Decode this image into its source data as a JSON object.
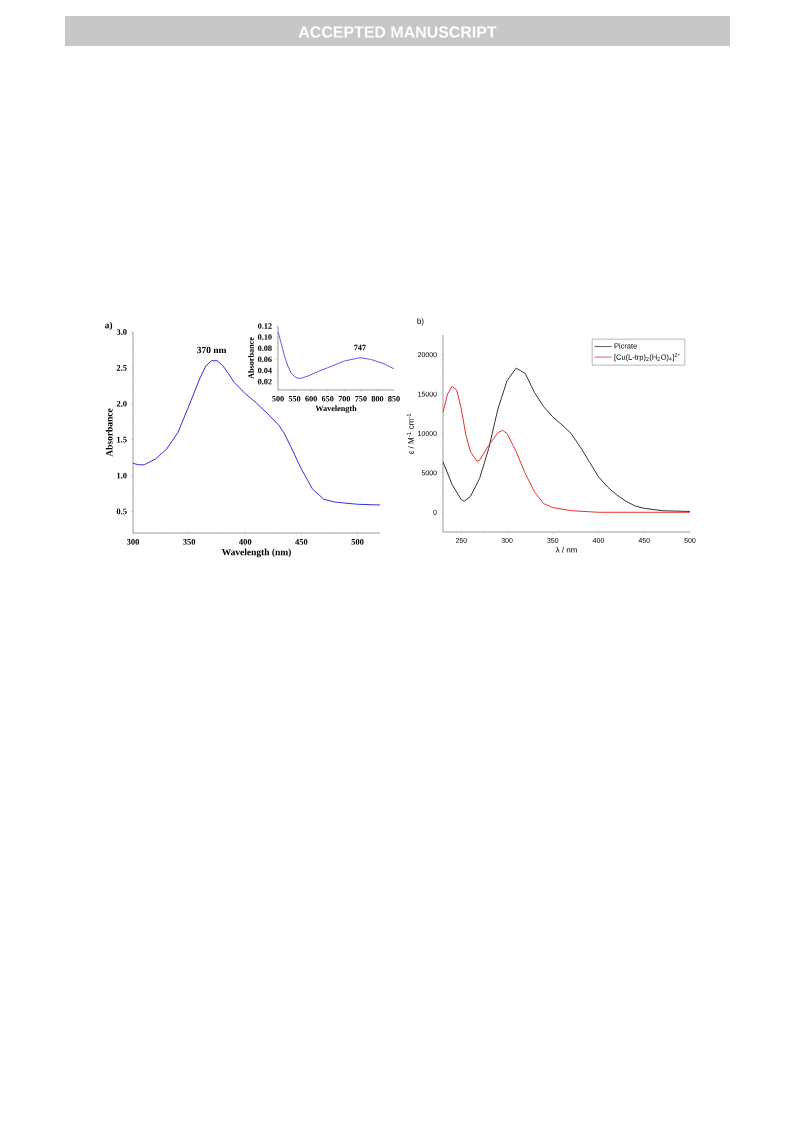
{
  "chart_data": [
    {
      "type": "line",
      "title": "a)",
      "xlabel": "Wavelength (nm)",
      "ylabel": "Absorbance",
      "xlim": [
        300,
        520
      ],
      "ylim": [
        0.2,
        3.0
      ],
      "xticks": [
        300,
        350,
        400,
        450,
        500
      ],
      "yticks": [
        {
          "value": 0.5,
          "label": "0.5"
        },
        {
          "value": 1,
          "label": "1.0"
        },
        {
          "value": 1.5,
          "label": "1.5"
        },
        {
          "value": 2,
          "label": "2.0"
        },
        {
          "value": 2.5,
          "label": "2.5"
        },
        {
          "value": 3,
          "label": "3.0"
        }
      ],
      "annotations": [
        {
          "text": "370 nm",
          "x": 370,
          "y": 2.6
        },
        "ACCEPTED MANUSCRIPT"
      ],
      "series": [
        {
          "color": "#3030e0",
          "x": [
            300,
            305,
            310,
            320,
            330,
            340,
            350,
            360,
            365,
            370,
            375,
            380,
            385,
            390,
            400,
            410,
            420,
            430,
            435,
            440,
            450,
            460,
            470,
            480,
            500,
            520
          ],
          "values": [
            1.17,
            1.15,
            1.15,
            1.23,
            1.37,
            1.6,
            1.98,
            2.37,
            2.53,
            2.6,
            2.6,
            2.53,
            2.42,
            2.3,
            2.14,
            2.01,
            1.86,
            1.7,
            1.58,
            1.42,
            1.09,
            0.81,
            0.67,
            0.63,
            0.6,
            0.59
          ]
        }
      ]
    },
    {
      "type": "line",
      "xlabel": "Wavelength",
      "ylabel": "Absorbance",
      "xlim": [
        500,
        850
      ],
      "ylim": [
        0.005,
        0.12
      ],
      "xticks": [
        500,
        550,
        600,
        650,
        700,
        750,
        800,
        850
      ],
      "yticks": [
        0.02,
        0.04,
        0.06,
        0.08,
        {
          "value": 0.1,
          "label": "0.10"
        },
        0.12
      ],
      "annotations": [
        {
          "text": "747",
          "x": 747,
          "y": 0.063
        }
      ],
      "series": [
        {
          "color": "#5a5aee",
          "x": [
            500,
            510,
            520,
            530,
            540,
            550,
            560,
            570,
            590,
            620,
            650,
            700,
            747,
            780,
            820,
            850
          ],
          "values": [
            0.11,
            0.088,
            0.065,
            0.048,
            0.035,
            0.029,
            0.026,
            0.026,
            0.03,
            0.038,
            0.045,
            0.057,
            0.063,
            0.06,
            0.052,
            0.043
          ]
        }
      ]
    },
    {
      "type": "line",
      "title": "b)",
      "xlabel": "λ / nm",
      "ylabel": "ε / M$^{-1}$ cm$^{-1}$",
      "xlim": [
        230,
        500
      ],
      "ylim": [
        -2500,
        22500
      ],
      "xticks": [
        250,
        300,
        350,
        400,
        450,
        500
      ],
      "yticks": [
        0,
        5000,
        10000,
        15000,
        20000
      ],
      "legend": "top right",
      "series": [
        {
          "name": "Picrate",
          "color": "#333333",
          "x": [
            230,
            240,
            250,
            253,
            260,
            270,
            280,
            290,
            300,
            310,
            320,
            330,
            340,
            350,
            360,
            370,
            380,
            390,
            400,
            410,
            420,
            430,
            440,
            450,
            470,
            500
          ],
          "values": [
            6400,
            3500,
            1600,
            1400,
            2000,
            4300,
            8100,
            13100,
            16700,
            18300,
            17600,
            15200,
            13400,
            12100,
            11100,
            10000,
            8300,
            6400,
            4500,
            3200,
            2200,
            1400,
            800,
            500,
            200,
            100
          ]
        },
        {
          "name": "[Cu(L-trp)$_{2}$(H$_{2}$O)$_{4}$]$^{2+}$",
          "color": "#e83030",
          "x": [
            230,
            235,
            240,
            245,
            250,
            255,
            260,
            267,
            270,
            280,
            290,
            295,
            300,
            310,
            320,
            330,
            340,
            350,
            370,
            400,
            450,
            500
          ],
          "values": [
            12700,
            15000,
            16000,
            15500,
            13100,
            9800,
            7700,
            6500,
            6600,
            8500,
            10100,
            10400,
            10000,
            7700,
            4900,
            2600,
            1100,
            600,
            200,
            0,
            0,
            0
          ]
        }
      ]
    }
  ]
}
